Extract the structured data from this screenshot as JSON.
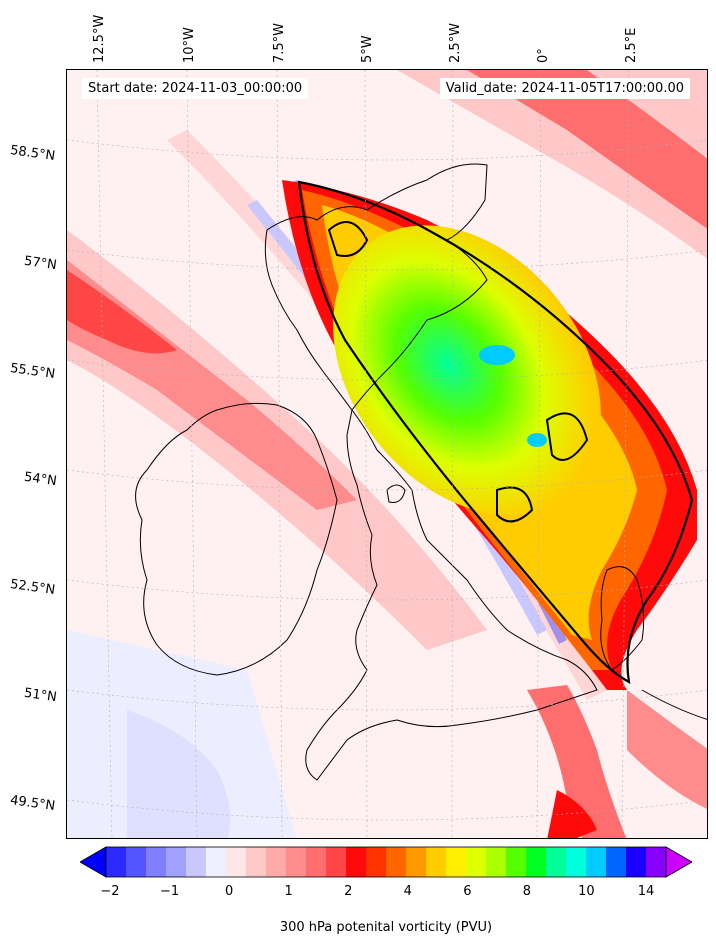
{
  "map": {
    "start_date": "Start date: 2024-11-03_00:00:00",
    "valid_date": "Valid_date: 2024-11-05T17:00:00.00",
    "lon_labels": [
      "12.5°W",
      "10°W",
      "7.5°W",
      "5°W",
      "2.5°W",
      "0°",
      "2.5°E"
    ],
    "lat_labels": [
      "58.5°N",
      "57°N",
      "55.5°N",
      "54°N",
      "52.5°N",
      "51°N",
      "49.5°N"
    ],
    "field": "300 hPa potenital vorticity (PVU)"
  },
  "colorbar": {
    "label": "300 hPa potenital vorticity (PVU)",
    "ticks": [
      "−2",
      "−1",
      "0",
      "1",
      "2",
      "4",
      "6",
      "8",
      "10",
      "14"
    ],
    "colors": [
      "#0000ff",
      "#2b2bff",
      "#5555ff",
      "#7f7fff",
      "#a0a0ff",
      "#c8c8ff",
      "#eeeeff",
      "#ffe6e6",
      "#ffc8c8",
      "#ffaaaa",
      "#ff8c8c",
      "#ff6e6e",
      "#ff4646",
      "#ff0a0a",
      "#ff3300",
      "#ff6600",
      "#ff9900",
      "#ffcc00",
      "#ffee00",
      "#ddff00",
      "#aaff00",
      "#55ff00",
      "#00ff22",
      "#00ff99",
      "#00ffdd",
      "#00ccff",
      "#0066ff",
      "#1a00ff",
      "#8800ff",
      "#cc00ff"
    ],
    "extend": "both"
  }
}
